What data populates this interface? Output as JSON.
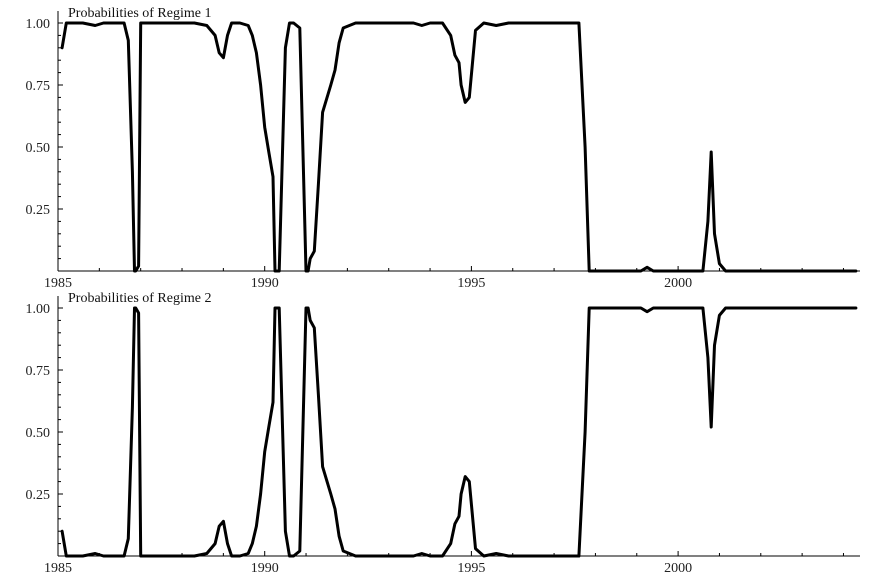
{
  "chart_data": [
    {
      "type": "line",
      "title": "Probabilities of Regime 1",
      "xlabel": "",
      "ylabel": "",
      "xlim": [
        1985.0,
        2004.4
      ],
      "ylim": [
        0,
        1
      ],
      "x_ticks": [
        1985,
        1990,
        1995,
        2000
      ],
      "y_ticks": [
        0.25,
        0.5,
        0.75,
        1.0
      ],
      "x_tick_labels": [
        "1985",
        "1990",
        "1995",
        "2000"
      ],
      "y_tick_labels": [
        "0.25",
        "0.50",
        "0.75",
        "1.00"
      ],
      "grid": false,
      "series": [
        {
          "color": "#000000",
          "x": [
            1985.1,
            1985.2,
            1985.4,
            1985.6,
            1985.9,
            1986.1,
            1986.3,
            1986.6,
            1986.7,
            1986.8,
            1986.85,
            1986.88,
            1986.95,
            1987.0,
            1987.1,
            1987.5,
            1987.7,
            1988.0,
            1988.3,
            1988.6,
            1988.8,
            1988.9,
            1989.0,
            1989.1,
            1989.2,
            1989.4,
            1989.6,
            1989.7,
            1989.8,
            1989.9,
            1990.0,
            1990.1,
            1990.2,
            1990.25,
            1990.35,
            1990.5,
            1990.6,
            1990.7,
            1990.85,
            1991.0,
            1991.05,
            1991.1,
            1991.2,
            1991.3,
            1991.4,
            1991.6,
            1991.7,
            1991.8,
            1991.9,
            1992.2,
            1992.6,
            1993.0,
            1993.3,
            1993.6,
            1993.8,
            1994.0,
            1994.3,
            1994.5,
            1994.6,
            1994.7,
            1994.75,
            1994.85,
            1994.95,
            1995.1,
            1995.3,
            1995.6,
            1995.9,
            1996.2,
            1996.5,
            1996.8,
            1997.1,
            1997.4,
            1997.6,
            1997.75,
            1997.85,
            1998.1,
            1998.5,
            1998.8,
            1999.0,
            1999.1,
            1999.25,
            1999.4,
            1999.6,
            1999.8,
            2000.0,
            2000.3,
            2000.6,
            2000.72,
            2000.8,
            2000.88,
            2001.0,
            2001.15,
            2001.5,
            2002.0,
            2002.5,
            2003.0,
            2003.5,
            2004.0,
            2004.3
          ],
          "y": [
            0.9,
            1.0,
            1.0,
            1.0,
            0.99,
            1.0,
            1.0,
            1.0,
            0.93,
            0.4,
            0.0,
            0.0,
            0.02,
            1.0,
            1.0,
            1.0,
            1.0,
            1.0,
            1.0,
            0.99,
            0.95,
            0.88,
            0.86,
            0.95,
            1.0,
            1.0,
            0.99,
            0.95,
            0.88,
            0.75,
            0.58,
            0.48,
            0.38,
            0.0,
            0.0,
            0.9,
            1.0,
            1.0,
            0.98,
            0.0,
            0.0,
            0.05,
            0.08,
            0.35,
            0.64,
            0.75,
            0.81,
            0.92,
            0.98,
            1.0,
            1.0,
            1.0,
            1.0,
            1.0,
            0.99,
            1.0,
            1.0,
            0.95,
            0.87,
            0.84,
            0.75,
            0.68,
            0.7,
            0.97,
            1.0,
            0.99,
            1.0,
            1.0,
            1.0,
            1.0,
            1.0,
            1.0,
            1.0,
            0.5,
            0.0,
            0.0,
            0.0,
            0.0,
            0.0,
            0.0,
            0.015,
            0.0,
            0.0,
            0.0,
            0.0,
            0.0,
            0.0,
            0.2,
            0.48,
            0.15,
            0.03,
            0.0,
            0.0,
            0.0,
            0.0,
            0.0,
            0.0,
            0.0,
            0.0
          ]
        }
      ]
    },
    {
      "type": "line",
      "title": "Probabilities of Regime 2",
      "xlabel": "",
      "ylabel": "",
      "xlim": [
        1985.0,
        2004.4
      ],
      "ylim": [
        0,
        1
      ],
      "x_ticks": [
        1985,
        1990,
        1995,
        2000
      ],
      "y_ticks": [
        0.25,
        0.5,
        0.75,
        1.0
      ],
      "x_tick_labels": [
        "1985",
        "1990",
        "1995",
        "2000"
      ],
      "y_tick_labels": [
        "0.25",
        "0.50",
        "0.75",
        "1.00"
      ],
      "grid": false,
      "series": [
        {
          "color": "#000000",
          "x": [
            1985.1,
            1985.2,
            1985.4,
            1985.6,
            1985.9,
            1986.1,
            1986.3,
            1986.6,
            1986.7,
            1986.8,
            1986.85,
            1986.88,
            1986.95,
            1987.0,
            1987.1,
            1987.5,
            1987.7,
            1988.0,
            1988.3,
            1988.6,
            1988.8,
            1988.9,
            1989.0,
            1989.1,
            1989.2,
            1989.4,
            1989.6,
            1989.7,
            1989.8,
            1989.9,
            1990.0,
            1990.1,
            1990.2,
            1990.25,
            1990.35,
            1990.5,
            1990.6,
            1990.7,
            1990.85,
            1991.0,
            1991.05,
            1991.1,
            1991.2,
            1991.3,
            1991.4,
            1991.6,
            1991.7,
            1991.8,
            1991.9,
            1992.2,
            1992.6,
            1993.0,
            1993.3,
            1993.6,
            1993.8,
            1994.0,
            1994.3,
            1994.5,
            1994.6,
            1994.7,
            1994.75,
            1994.85,
            1994.95,
            1995.1,
            1995.3,
            1995.6,
            1995.9,
            1996.2,
            1996.5,
            1996.8,
            1997.1,
            1997.4,
            1997.6,
            1997.75,
            1997.85,
            1998.1,
            1998.5,
            1998.8,
            1999.0,
            1999.1,
            1999.25,
            1999.4,
            1999.6,
            1999.8,
            2000.0,
            2000.3,
            2000.6,
            2000.72,
            2000.8,
            2000.88,
            2001.0,
            2001.15,
            2001.5,
            2002.0,
            2002.5,
            2003.0,
            2003.5,
            2004.0,
            2004.3
          ],
          "y": [
            0.1,
            0.0,
            0.0,
            0.0,
            0.01,
            0.0,
            0.0,
            0.0,
            0.07,
            0.6,
            1.0,
            1.0,
            0.98,
            0.0,
            0.0,
            0.0,
            0.0,
            0.0,
            0.0,
            0.01,
            0.05,
            0.12,
            0.14,
            0.05,
            0.0,
            0.0,
            0.01,
            0.05,
            0.12,
            0.25,
            0.42,
            0.52,
            0.62,
            1.0,
            1.0,
            0.1,
            0.0,
            0.0,
            0.02,
            1.0,
            1.0,
            0.95,
            0.92,
            0.65,
            0.36,
            0.25,
            0.19,
            0.08,
            0.02,
            0.0,
            0.0,
            0.0,
            0.0,
            0.0,
            0.01,
            0.0,
            0.0,
            0.05,
            0.13,
            0.16,
            0.25,
            0.32,
            0.3,
            0.03,
            0.0,
            0.01,
            0.0,
            0.0,
            0.0,
            0.0,
            0.0,
            0.0,
            0.0,
            0.5,
            1.0,
            1.0,
            1.0,
            1.0,
            1.0,
            1.0,
            0.985,
            1.0,
            1.0,
            1.0,
            1.0,
            1.0,
            1.0,
            0.8,
            0.52,
            0.85,
            0.97,
            1.0,
            1.0,
            1.0,
            1.0,
            1.0,
            1.0,
            1.0,
            1.0
          ]
        }
      ]
    }
  ]
}
